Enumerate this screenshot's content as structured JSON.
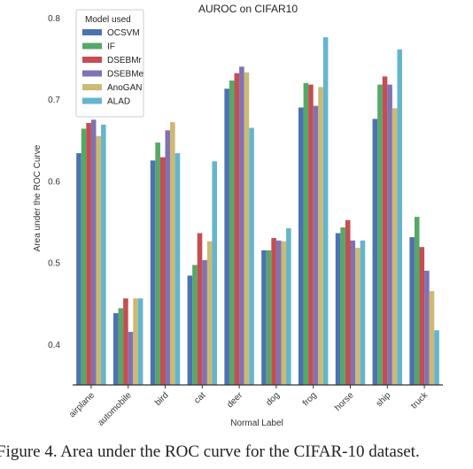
{
  "chart_data": {
    "type": "bar",
    "title": "AUROC on CIFAR10",
    "xlabel": "Normal Label",
    "ylabel": "Area under the ROC Curve",
    "ylim": [
      0.35,
      0.8
    ],
    "yticks": [
      "0.4",
      "0.5",
      "0.6",
      "0.7",
      "0.8"
    ],
    "grid": false,
    "legend_title": "Model used",
    "legend_position": "top-left",
    "categories": [
      "airplane",
      "automobile",
      "bird",
      "cat",
      "deer",
      "dog",
      "frog",
      "horse",
      "ship",
      "truck"
    ],
    "series": [
      {
        "name": "OCSVM",
        "color": "#4c72b0",
        "values": [
          0.634,
          0.438,
          0.625,
          0.484,
          0.713,
          0.515,
          0.69,
          0.536,
          0.676,
          0.531
        ]
      },
      {
        "name": "IF",
        "color": "#55a868",
        "values": [
          0.664,
          0.444,
          0.647,
          0.497,
          0.723,
          0.515,
          0.72,
          0.543,
          0.718,
          0.556
        ]
      },
      {
        "name": "DSEBMr",
        "color": "#c44e52",
        "values": [
          0.671,
          0.456,
          0.629,
          0.536,
          0.732,
          0.53,
          0.718,
          0.552,
          0.728,
          0.519
        ]
      },
      {
        "name": "DSEBMe",
        "color": "#8172b2",
        "values": [
          0.675,
          0.415,
          0.662,
          0.503,
          0.74,
          0.527,
          0.692,
          0.527,
          0.718,
          0.49
        ]
      },
      {
        "name": "AnoGAN",
        "color": "#ccb974",
        "values": [
          0.655,
          0.456,
          0.672,
          0.526,
          0.733,
          0.526,
          0.715,
          0.518,
          0.689,
          0.465
        ]
      },
      {
        "name": "ALAD",
        "color": "#64b5cd",
        "values": [
          0.669,
          0.456,
          0.634,
          0.624,
          0.665,
          0.542,
          0.776,
          0.527,
          0.761,
          0.417
        ]
      }
    ]
  },
  "caption": "Figure 4.   Area under the ROC curve for the CIFAR-10 dataset."
}
